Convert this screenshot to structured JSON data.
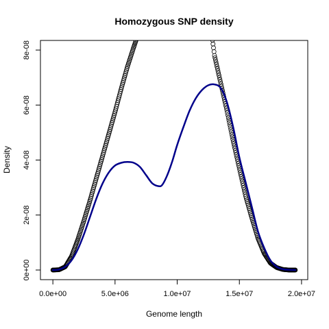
{
  "chart_data": {
    "type": "scatter",
    "title": "Homozygous SNP density",
    "xlabel": "Genome length",
    "ylabel": "Density",
    "xlim": [
      -1000000,
      20500000
    ],
    "ylim": [
      -3.5e-09,
      8.35e-08
    ],
    "x_ticks": [
      0,
      5000000,
      10000000,
      15000000,
      20000000
    ],
    "x_tick_labels": [
      "0.0e+00",
      "5.0e+06",
      "1.0e+07",
      "1.5e+07",
      "2.0e+07"
    ],
    "y_ticks": [
      0,
      2e-08,
      4e-08,
      6e-08,
      8e-08
    ],
    "y_tick_labels": [
      "0e+00",
      "2e-08",
      "4e-08",
      "6e-08",
      "8e-08"
    ],
    "grid": false,
    "legend": "none",
    "series": [
      {
        "style": "open-circles",
        "color": "#000000",
        "x": [
          0,
          500000,
          1000000,
          1500000,
          2000000,
          2500000,
          3000000,
          3500000,
          4000000,
          4500000,
          5000000,
          5500000,
          6000000,
          6500000,
          6800000,
          12800000,
          13000000,
          13500000,
          14000000,
          14500000,
          15000000,
          15500000,
          16000000,
          16500000,
          17000000,
          17500000,
          18000000,
          18500000,
          19000000,
          19500000
        ],
        "y": [
          0,
          1e-10,
          1.2e-09,
          5e-09,
          1.1e-08,
          1.8e-08,
          2.55e-08,
          3.35e-08,
          4.15e-08,
          4.95e-08,
          5.75e-08,
          6.6e-08,
          7.4e-08,
          8.1e-08,
          8.5e-08,
          8.5e-08,
          7.8e-08,
          6.8e-08,
          5.8e-08,
          4.7e-08,
          3.7e-08,
          2.7e-08,
          1.9e-08,
          1.15e-08,
          6e-09,
          2.5e-09,
          9e-10,
          2e-10,
          0,
          0
        ]
      },
      {
        "style": "line",
        "color": "#00008b",
        "x": [
          0,
          500000,
          1000000,
          1500000,
          2000000,
          2500000,
          3000000,
          3500000,
          4000000,
          4500000,
          5000000,
          5500000,
          6000000,
          6500000,
          7000000,
          7500000,
          8000000,
          8500000,
          8800000,
          9200000,
          9600000,
          10000000,
          10500000,
          11000000,
          11500000,
          12000000,
          12500000,
          13000000,
          13500000,
          14000000,
          14500000,
          15000000,
          15500000,
          16000000,
          16500000,
          17000000,
          17500000,
          18000000,
          18500000,
          19000000,
          19500000
        ],
        "y": [
          0,
          2e-10,
          1.2e-09,
          3.5e-09,
          7.5e-09,
          1.3e-08,
          1.95e-08,
          2.6e-08,
          3.15e-08,
          3.55e-08,
          3.8e-08,
          3.9e-08,
          3.93e-08,
          3.9e-08,
          3.75e-08,
          3.45e-08,
          3.15e-08,
          3.05e-08,
          3.1e-08,
          3.45e-08,
          3.95e-08,
          4.55e-08,
          5.2e-08,
          5.8e-08,
          6.25e-08,
          6.55e-08,
          6.72e-08,
          6.75e-08,
          6.62e-08,
          6.1e-08,
          5.2e-08,
          4.1e-08,
          3.2e-08,
          2.3e-08,
          1.4e-08,
          8e-09,
          3.5e-09,
          1.2e-09,
          3e-10,
          1e-10,
          0
        ]
      }
    ]
  }
}
